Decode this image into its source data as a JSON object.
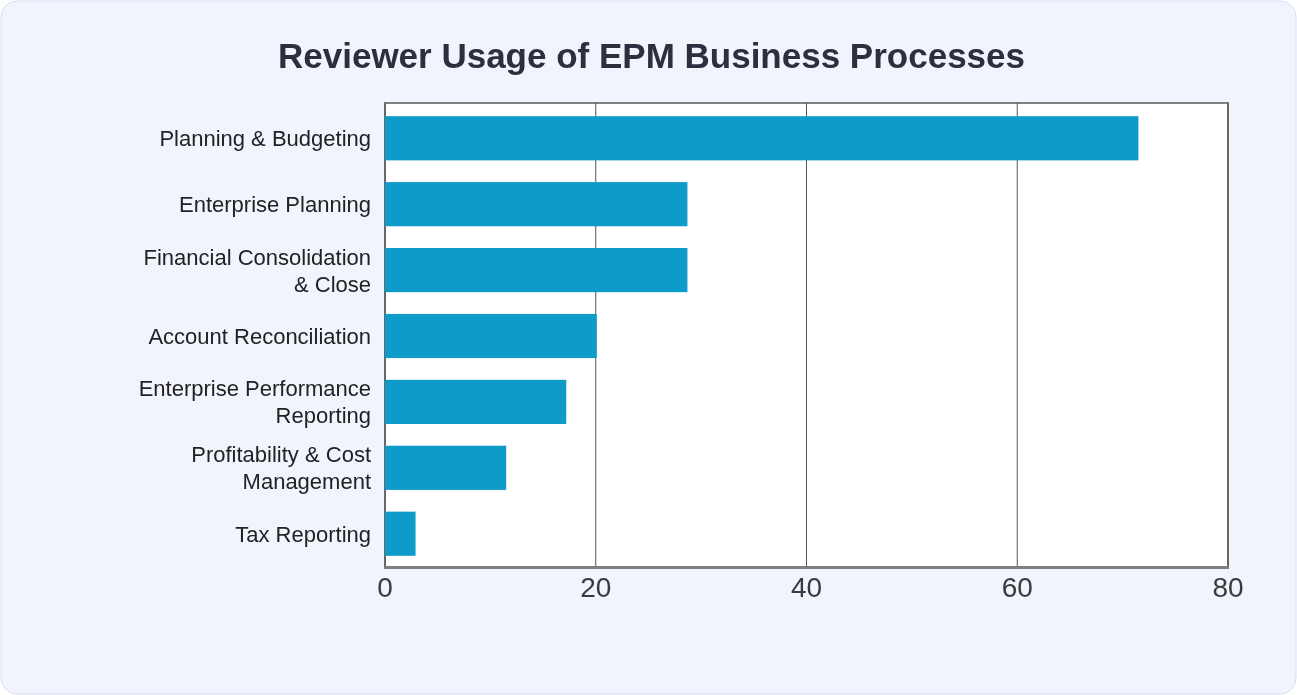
{
  "chart_data": {
    "type": "bar",
    "title": "Reviewer Usage of EPM Business Processes",
    "orientation": "horizontal",
    "categories": [
      "Planning & Budgeting",
      "Enterprise Planning",
      "Financial Consolidation & Close",
      "Account Reconciliation",
      "Enterprise Performance Reporting",
      "Profitability & Cost Management",
      "Tax Reporting"
    ],
    "values": [
      71.5,
      28.7,
      28.7,
      20.1,
      17.2,
      11.5,
      2.9
    ],
    "color": "#0d9cc9",
    "xlim": [
      0,
      80
    ],
    "xticks": [
      0,
      20,
      40,
      60,
      80
    ],
    "grid": "x"
  }
}
